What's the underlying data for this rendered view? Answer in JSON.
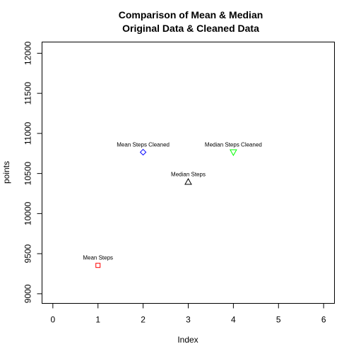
{
  "chart_data": {
    "type": "scatter",
    "title": [
      "Comparison of Mean & Median",
      "Original Data & Cleaned Data"
    ],
    "xlabel": "Index",
    "ylabel": "points",
    "xlim": [
      -0.24,
      6.24
    ],
    "ylim": [
      8880,
      12140
    ],
    "x_ticks": [
      0,
      1,
      2,
      3,
      4,
      5,
      6
    ],
    "y_ticks": [
      9000,
      9500,
      10000,
      10500,
      11000,
      11500,
      12000
    ],
    "grid": false,
    "points": [
      {
        "label": "Mean Steps",
        "x": 1,
        "y": 9354,
        "shape": "square",
        "color": "#ff0000"
      },
      {
        "label": "Mean Steps Cleaned",
        "x": 2,
        "y": 10766,
        "shape": "diamond",
        "color": "#0000ff"
      },
      {
        "label": "Median Steps",
        "x": 3,
        "y": 10395,
        "shape": "triangle-up",
        "color": "#000000"
      },
      {
        "label": "Median Steps Cleaned",
        "x": 4,
        "y": 10766,
        "shape": "triangle-down",
        "color": "#00ff00"
      }
    ]
  }
}
